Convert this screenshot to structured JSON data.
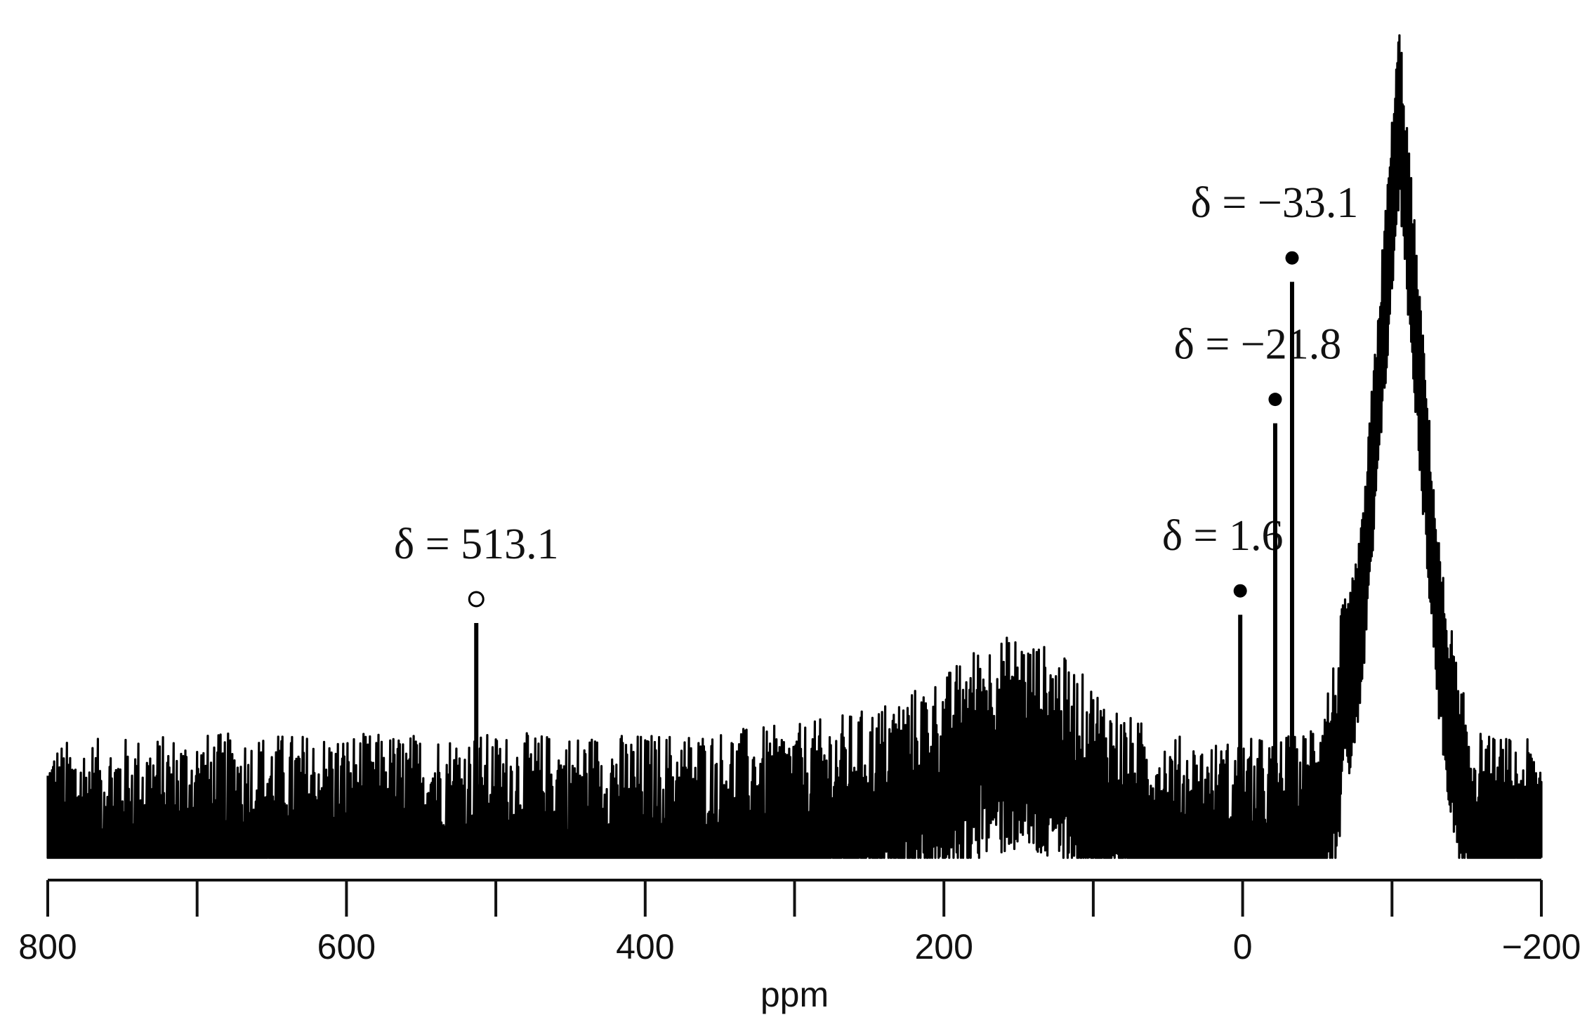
{
  "chart_data": {
    "type": "line",
    "title": "",
    "xlabel": "ppm",
    "ylabel": "",
    "xlim": [
      800,
      -200
    ],
    "x_reversed": true,
    "x_ticks": [
      800,
      700,
      600,
      500,
      400,
      300,
      200,
      100,
      0,
      -100,
      -200
    ],
    "x_tick_labels": [
      {
        "value": 800,
        "label": "800"
      },
      {
        "value": 600,
        "label": "600"
      },
      {
        "value": 400,
        "label": "400"
      },
      {
        "value": 200,
        "label": "200"
      },
      {
        "value": 0,
        "label": "0"
      },
      {
        "value": -200,
        "label": "−200"
      }
    ],
    "y_axis_shown": false,
    "grid": false,
    "line_color": "#000000",
    "series": [
      {
        "envelope": [
          {
            "x": 800,
            "y": 0.05
          },
          {
            "x": 700,
            "y": 0.06
          },
          {
            "x": 600,
            "y": 0.06
          },
          {
            "x": 500,
            "y": 0.06
          },
          {
            "x": 400,
            "y": 0.06
          },
          {
            "x": 300,
            "y": 0.07
          },
          {
            "x": 250,
            "y": 0.09
          },
          {
            "x": 200,
            "y": 0.13
          },
          {
            "x": 175,
            "y": 0.17
          },
          {
            "x": 150,
            "y": 0.18
          },
          {
            "x": 125,
            "y": 0.16
          },
          {
            "x": 100,
            "y": 0.12
          },
          {
            "x": 75,
            "y": 0.08
          },
          {
            "x": 50,
            "y": 0.06
          },
          {
            "x": 20,
            "y": 0.05
          },
          {
            "x": -40,
            "y": 0.06
          },
          {
            "x": -60,
            "y": 0.14
          },
          {
            "x": -80,
            "y": 0.36
          },
          {
            "x": -95,
            "y": 0.72
          },
          {
            "x": -105,
            "y": 0.96
          },
          {
            "x": -115,
            "y": 0.72
          },
          {
            "x": -130,
            "y": 0.36
          },
          {
            "x": -145,
            "y": 0.12
          },
          {
            "x": -160,
            "y": 0.06
          },
          {
            "x": -200,
            "y": 0.05
          }
        ],
        "noise_amplitude": 0.12
      }
    ],
    "peaks": [
      {
        "ppm": 513.1,
        "label": "δ = 513.1",
        "marker": "open-circle",
        "height": 0.27
      },
      {
        "ppm": 1.6,
        "label": "δ = 1.6",
        "marker": "filled-circle",
        "height": 0.28
      },
      {
        "ppm": -21.8,
        "label": "δ = −21.8",
        "marker": "filled-circle",
        "height": 0.51
      },
      {
        "ppm": -33.1,
        "label": "δ = −33.1",
        "marker": "filled-circle",
        "height": 0.68
      }
    ]
  }
}
